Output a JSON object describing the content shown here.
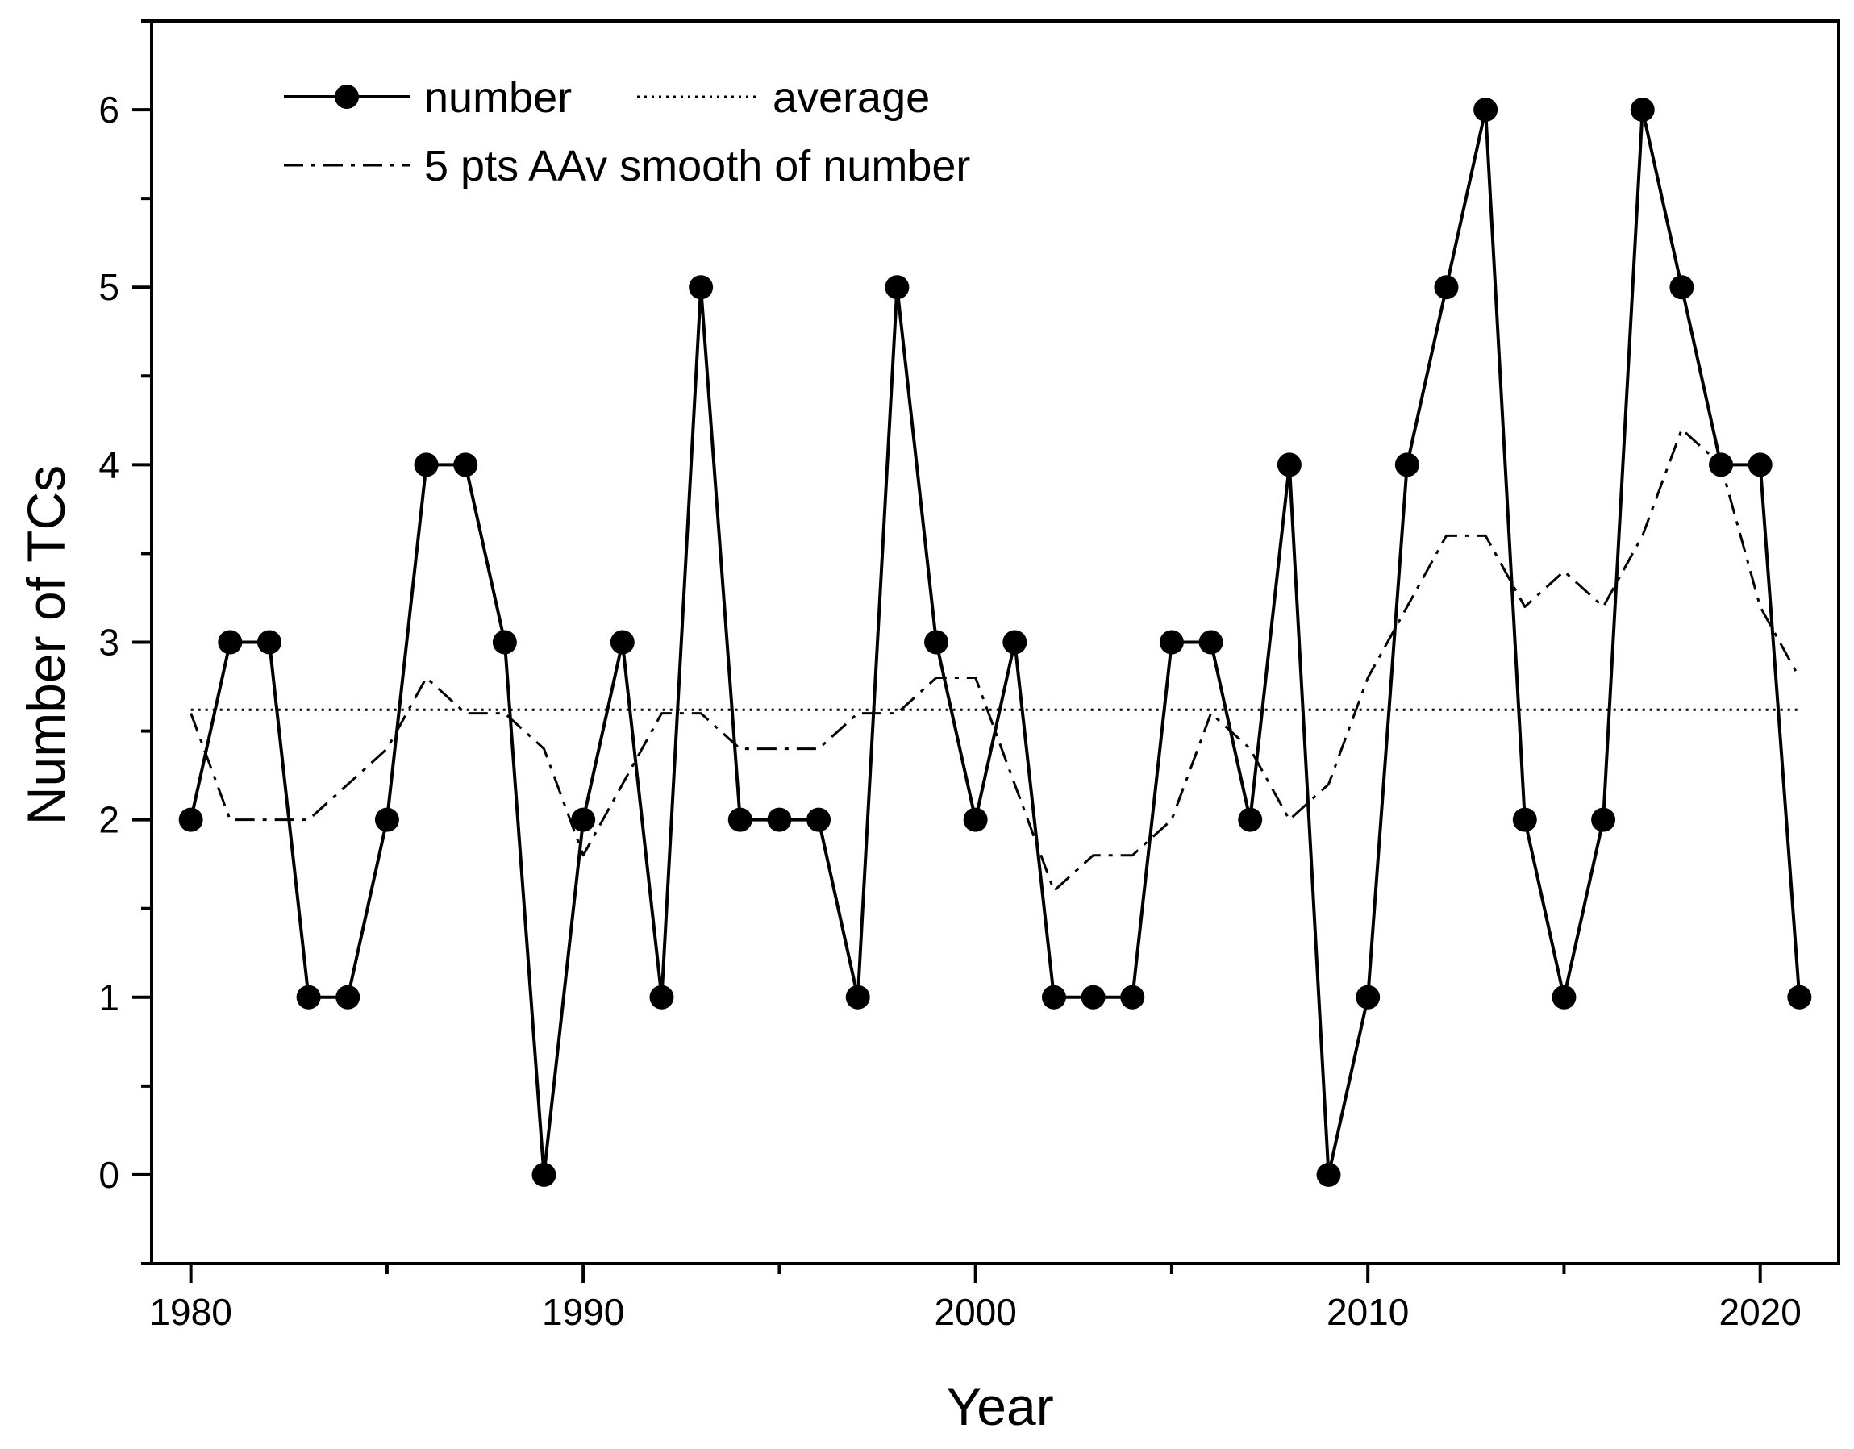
{
  "chart_data": {
    "type": "line",
    "xlabel": "Year",
    "ylabel": "Number of TCs",
    "xlim": [
      1979,
      2022
    ],
    "ylim": [
      -0.5,
      6.5
    ],
    "xticks_major": [
      1980,
      1990,
      2000,
      2010,
      2020
    ],
    "xticks_major_labels": [
      "1980",
      "1990",
      "2000",
      "2010",
      "2020"
    ],
    "xticks_minor": [
      1985,
      1995,
      2005,
      2015
    ],
    "yticks_major": [
      0,
      1,
      2,
      3,
      4,
      5,
      6
    ],
    "yticks_major_labels": [
      "0",
      "1",
      "2",
      "3",
      "4",
      "5",
      "6"
    ],
    "yticks_minor": [
      -0.5,
      0.5,
      1.5,
      2.5,
      3.5,
      4.5,
      5.5,
      6.5
    ],
    "x": [
      1980,
      1981,
      1982,
      1983,
      1984,
      1985,
      1986,
      1987,
      1988,
      1989,
      1990,
      1991,
      1992,
      1993,
      1994,
      1995,
      1996,
      1997,
      1998,
      1999,
      2000,
      2001,
      2002,
      2003,
      2004,
      2005,
      2006,
      2007,
      2008,
      2009,
      2010,
      2011,
      2012,
      2013,
      2014,
      2015,
      2016,
      2017,
      2018,
      2019,
      2020,
      2021
    ],
    "series": [
      {
        "name": "number",
        "style": "solid-markers",
        "values": [
          2,
          3,
          3,
          1,
          1,
          2,
          4,
          4,
          3,
          0,
          2,
          3,
          1,
          5,
          2,
          2,
          2,
          1,
          5,
          3,
          2,
          3,
          1,
          1,
          1,
          3,
          3,
          2,
          4,
          0,
          1,
          4,
          5,
          6,
          2,
          1,
          2,
          6,
          5,
          4,
          4,
          1
        ]
      },
      {
        "name": "average",
        "style": "dotted",
        "values": [
          2.62,
          2.62,
          2.62,
          2.62,
          2.62,
          2.62,
          2.62,
          2.62,
          2.62,
          2.62,
          2.62,
          2.62,
          2.62,
          2.62,
          2.62,
          2.62,
          2.62,
          2.62,
          2.62,
          2.62,
          2.62,
          2.62,
          2.62,
          2.62,
          2.62,
          2.62,
          2.62,
          2.62,
          2.62,
          2.62,
          2.62,
          2.62,
          2.62,
          2.62,
          2.62,
          2.62,
          2.62,
          2.62,
          2.62,
          2.62,
          2.62,
          2.62
        ]
      },
      {
        "name": "5 pts AAv smooth of number",
        "style": "dash-dot",
        "values": [
          2.6,
          2.0,
          2.0,
          2.0,
          2.2,
          2.4,
          2.8,
          2.6,
          2.6,
          2.4,
          1.8,
          2.2,
          2.6,
          2.6,
          2.4,
          2.4,
          2.4,
          2.6,
          2.6,
          2.8,
          2.8,
          2.2,
          1.6,
          1.8,
          1.8,
          2.0,
          2.6,
          2.4,
          2.0,
          2.2,
          2.8,
          3.2,
          3.6,
          3.6,
          3.2,
          3.4,
          3.2,
          3.6,
          4.2,
          4.0,
          3.2,
          2.8
        ]
      }
    ],
    "legend": {
      "position": "top-left",
      "entries": [
        "number",
        "average",
        "5 pts AAv smooth of number"
      ]
    }
  }
}
